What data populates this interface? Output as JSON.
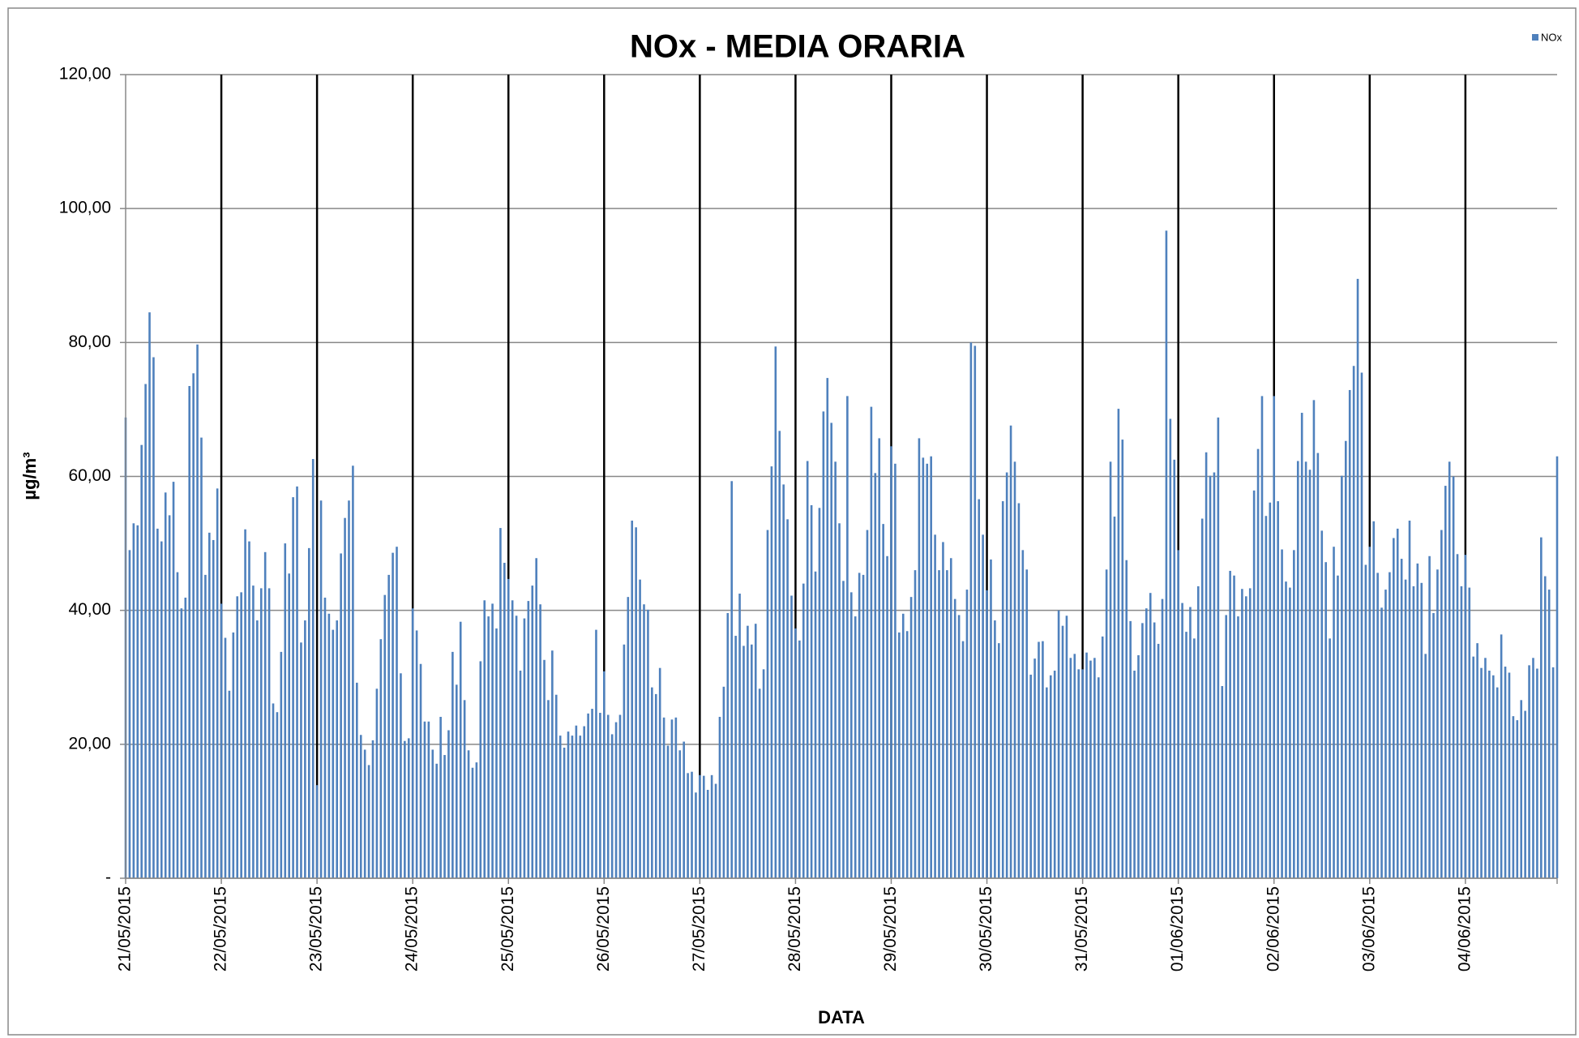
{
  "chart_data": {
    "type": "bar",
    "title": "NOx - MEDIA ORARIA",
    "x_label": "DATA",
    "y_label": "µg/m³",
    "categories": [
      "21/05/2015",
      null,
      null,
      null,
      null,
      null,
      null,
      null,
      null,
      null,
      null,
      null,
      null,
      null,
      null,
      null,
      null,
      null,
      null,
      null,
      null,
      null,
      null,
      null,
      "22/05/2015",
      null,
      null,
      null,
      null,
      null,
      null,
      null,
      null,
      null,
      null,
      null,
      null,
      null,
      null,
      null,
      null,
      null,
      null,
      null,
      null,
      null,
      null,
      null,
      "23/05/2015",
      null,
      null,
      null,
      null,
      null,
      null,
      null,
      null,
      null,
      null,
      null,
      null,
      null,
      null,
      null,
      null,
      null,
      null,
      null,
      null,
      null,
      null,
      null,
      "24/05/2015",
      null,
      null,
      null,
      null,
      null,
      null,
      null,
      null,
      null,
      null,
      null,
      null,
      null,
      null,
      null,
      null,
      null,
      null,
      null,
      null,
      null,
      null,
      null,
      "25/05/2015",
      null,
      null,
      null,
      null,
      null,
      null,
      null,
      null,
      null,
      null,
      null,
      null,
      null,
      null,
      null,
      null,
      null,
      null,
      null,
      null,
      null,
      null,
      null,
      "26/05/2015",
      null,
      null,
      null,
      null,
      null,
      null,
      null,
      null,
      null,
      null,
      null,
      null,
      null,
      null,
      null,
      null,
      null,
      null,
      null,
      null,
      null,
      null,
      null,
      "27/05/2015",
      null,
      null,
      null,
      null,
      null,
      null,
      null,
      null,
      null,
      null,
      null,
      null,
      null,
      null,
      null,
      null,
      null,
      null,
      null,
      null,
      null,
      null,
      null,
      "28/05/2015",
      null,
      null,
      null,
      null,
      null,
      null,
      null,
      null,
      null,
      null,
      null,
      null,
      null,
      null,
      null,
      null,
      null,
      null,
      null,
      null,
      null,
      null,
      null,
      "29/05/2015",
      null,
      null,
      null,
      null,
      null,
      null,
      null,
      null,
      null,
      null,
      null,
      null,
      null,
      null,
      null,
      null,
      null,
      null,
      null,
      null,
      null,
      null,
      null,
      "30/05/2015",
      null,
      null,
      null,
      null,
      null,
      null,
      null,
      null,
      null,
      null,
      null,
      null,
      null,
      null,
      null,
      null,
      null,
      null,
      null,
      null,
      null,
      null,
      null,
      "31/05/2015",
      null,
      null,
      null,
      null,
      null,
      null,
      null,
      null,
      null,
      null,
      null,
      null,
      null,
      null,
      null,
      null,
      null,
      null,
      null,
      null,
      null,
      null,
      null,
      "01/06/2015",
      null,
      null,
      null,
      null,
      null,
      null,
      null,
      null,
      null,
      null,
      null,
      null,
      null,
      null,
      null,
      null,
      null,
      null,
      null,
      null,
      null,
      null,
      null,
      "02/06/2015",
      null,
      null,
      null,
      null,
      null,
      null,
      null,
      null,
      null,
      null,
      null,
      null,
      null,
      null,
      null,
      null,
      null,
      null,
      null,
      null,
      null,
      null,
      null,
      "03/06/2015",
      null,
      null,
      null,
      null,
      null,
      null,
      null,
      null,
      null,
      null,
      null,
      null,
      null,
      null,
      null,
      null,
      null,
      null,
      null,
      null,
      null,
      null,
      null,
      "04/06/2015",
      null,
      null,
      null,
      null,
      null,
      null,
      null,
      null,
      null,
      null,
      null,
      null,
      null,
      null,
      null,
      null,
      null,
      null,
      null,
      null,
      null,
      null,
      null
    ],
    "series": [
      {
        "name": "NOx",
        "color": "#4f81bd",
        "values": [
          68.8,
          49,
          53,
          52.7,
          64.7,
          73.8,
          84.5,
          77.8,
          52.2,
          50.3,
          57.6,
          54.2,
          59.2,
          45.7,
          40.3,
          41.9,
          73.5,
          75.4,
          79.7,
          65.8,
          45.3,
          51.6,
          50.5,
          58.2,
          41,
          35.9,
          28,
          36.7,
          42.1,
          42.7,
          52.1,
          50.3,
          43.7,
          38.5,
          43.3,
          48.7,
          43.3,
          26.1,
          24.8,
          33.8,
          50,
          45.5,
          56.9,
          58.5,
          35.2,
          38.5,
          49.3,
          62.6,
          13.9,
          56.4,
          41.9,
          39.5,
          37.1,
          38.5,
          48.5,
          53.8,
          56.4,
          61.6,
          29.2,
          21.4,
          19.2,
          16.9,
          20.6,
          28.3,
          35.7,
          42.3,
          45.3,
          48.6,
          49.5,
          30.6,
          20.5,
          20.9,
          40.3,
          37,
          32,
          23.4,
          23.4,
          19.2,
          17.1,
          24.1,
          18.4,
          22.1,
          33.8,
          28.9,
          38.3,
          26.6,
          19.1,
          16.5,
          17.3,
          32.4,
          41.5,
          39.1,
          41,
          37.3,
          52.3,
          47.1,
          44.7,
          41.5,
          39.2,
          31,
          38.8,
          41.4,
          43.7,
          47.8,
          40.9,
          32.6,
          26.6,
          34,
          27.4,
          21.3,
          19.5,
          21.9,
          21.3,
          22.8,
          21.3,
          22.7,
          24.6,
          25.3,
          37.1,
          24.7,
          30.9,
          24.4,
          21.5,
          23.3,
          24.4,
          34.9,
          42,
          53.4,
          52.4,
          44.6,
          40.9,
          40.1,
          28.5,
          27.5,
          31.4,
          24,
          19.8,
          23.7,
          24,
          19.1,
          20.4,
          15.7,
          15.9,
          12.8,
          15.4,
          15.3,
          13.2,
          15.4,
          14.1,
          24.1,
          28.6,
          39.6,
          59.3,
          36.2,
          42.5,
          34.7,
          37.7,
          34.9,
          38,
          28.3,
          31.2,
          52,
          61.5,
          79.4,
          66.8,
          58.8,
          53.6,
          42.2,
          37.3,
          35.5,
          44,
          62.3,
          55.7,
          45.8,
          55.3,
          69.7,
          74.7,
          68,
          62.2,
          53,
          44.4,
          72,
          42.7,
          39.1,
          45.6,
          45.3,
          52,
          70.4,
          60.5,
          65.7,
          52.9,
          48.1,
          64.5,
          61.9,
          36.7,
          39.5,
          36.9,
          42,
          46,
          65.7,
          62.8,
          61.9,
          63,
          51.3,
          46,
          50.2,
          46,
          47.8,
          41.7,
          39.3,
          35.4,
          43.1,
          80,
          79.5,
          56.6,
          51.3,
          43,
          47.6,
          38.5,
          35.1,
          56.3,
          60.6,
          67.6,
          62.2,
          56,
          49,
          46.1,
          30.4,
          32.8,
          35.3,
          35.4,
          28.5,
          30.3,
          31,
          40,
          37.7,
          39.2,
          32.9,
          33.5,
          31.2,
          31.2,
          33.7,
          32.5,
          32.9,
          30,
          36.1,
          46.1,
          62.2,
          54,
          70.1,
          65.5,
          47.5,
          38.4,
          31,
          33.3,
          38.1,
          40.3,
          42.6,
          38.2,
          35,
          41.7,
          96.7,
          68.6,
          62.5,
          49,
          41.1,
          36.8,
          40.5,
          35.8,
          43.6,
          53.7,
          63.6,
          60.1,
          60.6,
          68.8,
          28.7,
          39.3,
          45.9,
          45.2,
          39.1,
          43.2,
          42.1,
          43.3,
          57.9,
          64.1,
          72,
          54.1,
          56.1,
          72,
          56.3,
          49.1,
          44.3,
          43.4,
          49,
          62.3,
          69.5,
          62.2,
          61,
          71.4,
          63.5,
          51.9,
          47.2,
          35.8,
          49.5,
          45.2,
          60.1,
          65.3,
          72.9,
          76.5,
          89.5,
          75.5,
          46.8,
          49.5,
          53.3,
          45.6,
          40.4,
          43.1,
          45.7,
          50.8,
          52.2,
          47.7,
          44.6,
          53.4,
          43.6,
          47,
          44.1,
          33.5,
          48.1,
          39.6,
          46.1,
          52,
          58.6,
          62.2,
          60,
          48.4,
          43.6,
          48.3,
          43.4,
          33.1,
          35.1,
          31.4,
          32.9,
          31,
          30.3,
          28.5,
          36.4,
          31.6,
          30.7,
          24.2,
          23.6,
          26.6,
          25,
          31.8,
          32.9,
          31.3,
          50.9,
          45.1,
          43.1,
          31.5,
          63
        ]
      }
    ],
    "ylim": [
      0,
      120
    ],
    "yticks": [
      {
        "value": 0,
        "label": "-"
      },
      {
        "value": 20,
        "label": "20,00"
      },
      {
        "value": 40,
        "label": "40,00"
      },
      {
        "value": 60,
        "label": "60,00"
      },
      {
        "value": 80,
        "label": "80,00"
      },
      {
        "value": 100,
        "label": "100,00"
      },
      {
        "value": 120,
        "label": "120,00"
      }
    ],
    "grid": true,
    "legend": "top-right"
  }
}
